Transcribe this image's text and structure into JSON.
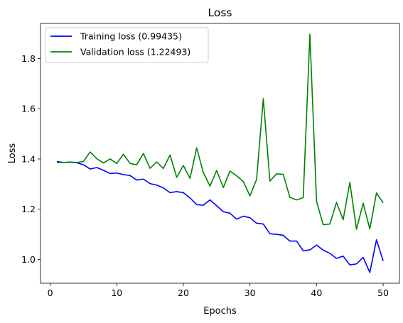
{
  "chart_data": {
    "type": "line",
    "title": "Loss",
    "xlabel": "Epochs",
    "ylabel": "Loss",
    "xlim": [
      -1.45,
      52.45
    ],
    "ylim": [
      0.905,
      1.94
    ],
    "x_ticks": [
      0,
      10,
      20,
      30,
      40,
      50
    ],
    "x_tick_labels": [
      "0",
      "10",
      "20",
      "30",
      "40",
      "50"
    ],
    "y_ticks": [
      1.0,
      1.2,
      1.4,
      1.6,
      1.8
    ],
    "y_tick_labels": [
      "1.0",
      "1.2",
      "1.4",
      "1.6",
      "1.8"
    ],
    "grid": false,
    "legend_position": "upper-left",
    "x": [
      1,
      2,
      3,
      4,
      5,
      6,
      7,
      8,
      9,
      10,
      11,
      12,
      13,
      14,
      15,
      16,
      17,
      18,
      19,
      20,
      21,
      22,
      23,
      24,
      25,
      26,
      27,
      28,
      29,
      30,
      31,
      32,
      33,
      34,
      35,
      36,
      37,
      38,
      39,
      40,
      41,
      42,
      43,
      44,
      45,
      46,
      47,
      48,
      49,
      50
    ],
    "series": [
      {
        "name": "Training loss (0.99435)",
        "color": "#0000ff",
        "values": [
          1.39,
          1.386,
          1.387,
          1.385,
          1.377,
          1.36,
          1.366,
          1.355,
          1.342,
          1.344,
          1.338,
          1.334,
          1.316,
          1.32,
          1.302,
          1.296,
          1.285,
          1.266,
          1.27,
          1.266,
          1.245,
          1.218,
          1.216,
          1.237,
          1.214,
          1.19,
          1.184,
          1.16,
          1.172,
          1.166,
          1.144,
          1.141,
          1.102,
          1.1,
          1.096,
          1.073,
          1.073,
          1.034,
          1.038,
          1.057,
          1.037,
          1.024,
          1.004,
          1.013,
          0.978,
          0.982,
          1.008,
          0.948,
          1.078,
          0.994
        ]
      },
      {
        "name": "Validation loss (1.22493)",
        "color": "#008000",
        "values": [
          1.386,
          1.386,
          1.388,
          1.386,
          1.39,
          1.428,
          1.401,
          1.384,
          1.4,
          1.382,
          1.419,
          1.382,
          1.377,
          1.422,
          1.363,
          1.388,
          1.362,
          1.416,
          1.327,
          1.374,
          1.323,
          1.444,
          1.346,
          1.292,
          1.354,
          1.286,
          1.352,
          1.333,
          1.31,
          1.253,
          1.319,
          1.64,
          1.312,
          1.341,
          1.339,
          1.247,
          1.237,
          1.246,
          1.897,
          1.232,
          1.138,
          1.141,
          1.227,
          1.158,
          1.307,
          1.12,
          1.224,
          1.121,
          1.265,
          1.225
        ]
      }
    ]
  }
}
